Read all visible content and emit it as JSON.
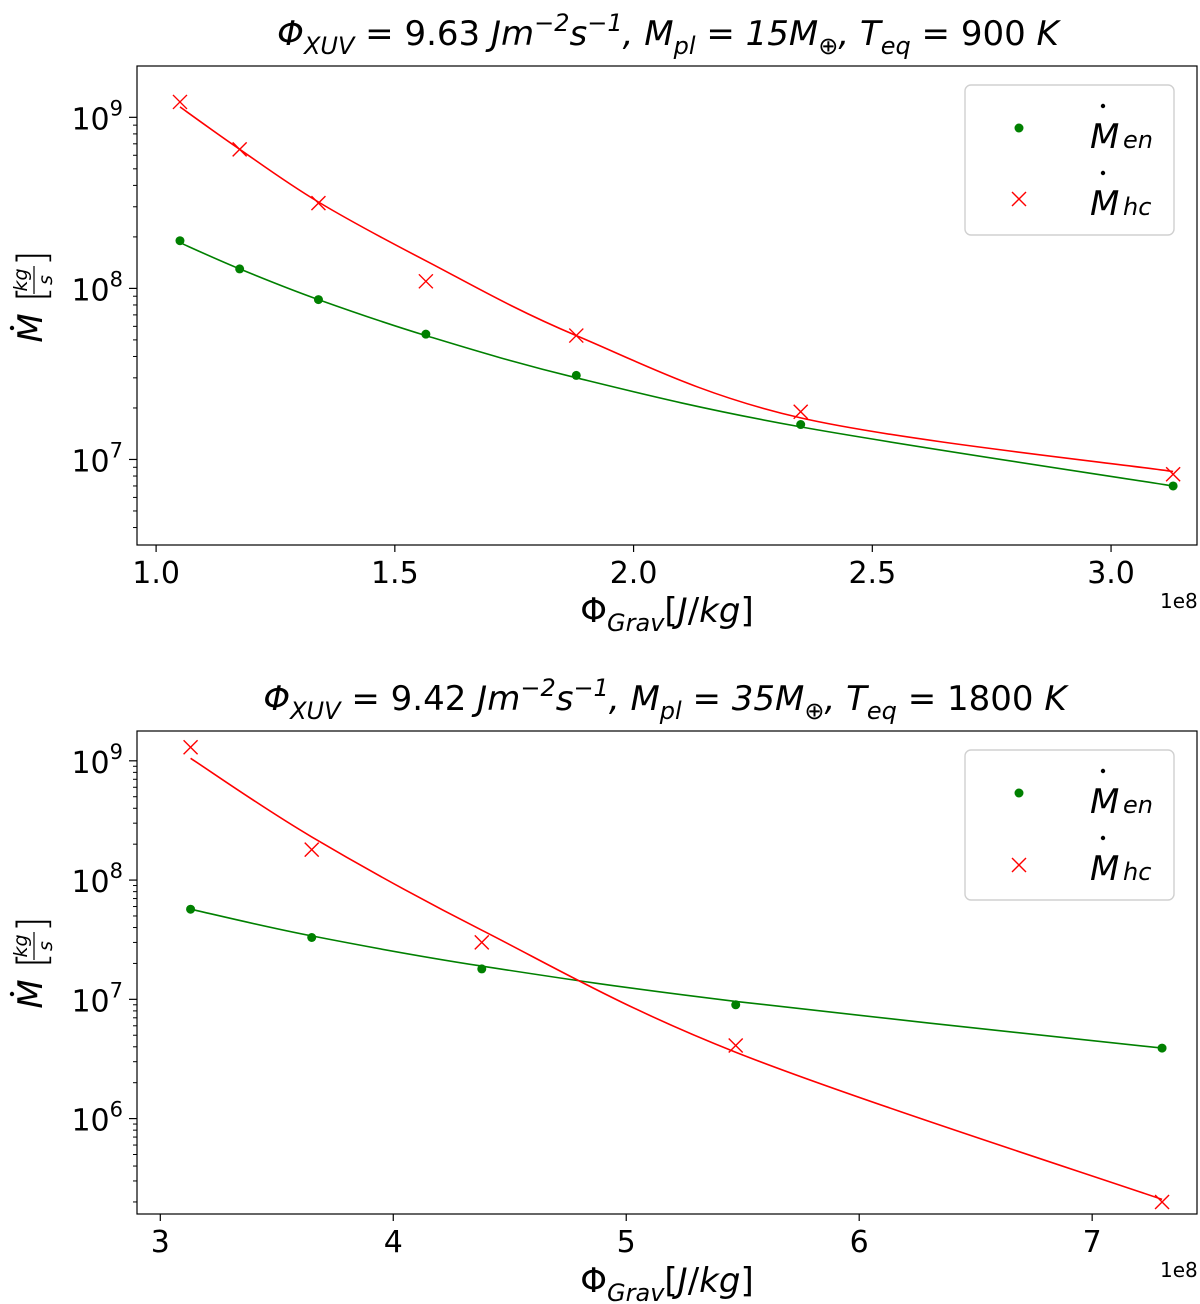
{
  "chart_data": [
    {
      "type": "scatter",
      "title": "Φ_XUV = 9.63 Jm⁻²s⁻¹,  M_pl = 15M⊕,  T_eq = 900 K",
      "title_parts": {
        "phi": "Φ",
        "phi_sub": "XUV",
        "phi_val": " = 9.63 ",
        "jm": "Jm",
        "jm_exp": "−2",
        "s": "s",
        "s_exp": "−1",
        "mpl": ",  M",
        "mpl_sub": "pl",
        "mpl_val": " = 15M",
        "earth": "⊕",
        "teq": ",  T",
        "teq_sub": "eq",
        "teq_val": " = 900 ",
        "unit": "K"
      },
      "xlabel": "Φ_Grav[J/kg]",
      "ylabel": "Ṁ[kg/s]",
      "x_offset_label": "1e8",
      "x_scale": 100000000,
      "xlim": [
        0.96,
        3.18
      ],
      "ylim_log10": [
        6.5,
        9.3
      ],
      "yscale": "log",
      "x_ticks": [
        1.0,
        1.5,
        2.0,
        2.5,
        3.0
      ],
      "x_tick_labels": [
        "1.0",
        "1.5",
        "2.0",
        "2.5",
        "3.0"
      ],
      "y_ticks_log10": [
        7,
        8,
        9
      ],
      "legend_position": "top-right",
      "series": [
        {
          "name": "Ṁ_en",
          "color": "#008000",
          "marker": "dot",
          "x": [
            1.05,
            1.175,
            1.34,
            1.565,
            1.88,
            2.35,
            3.13
          ],
          "y": [
            190000000,
            130000000,
            86000000,
            54000000,
            31000000,
            16000000,
            7000000
          ],
          "fit_x": [
            1.05,
            1.175,
            1.34,
            1.565,
            1.88,
            2.35,
            3.13
          ],
          "fit_y": [
            185000000,
            130000000,
            86000000,
            53000000,
            30000000,
            15500000,
            7000000
          ]
        },
        {
          "name": "Ṁ_hc",
          "color": "#ff0000",
          "marker": "x",
          "x": [
            1.05,
            1.175,
            1.34,
            1.565,
            1.88,
            2.35,
            3.13
          ],
          "y": [
            1230000000,
            650000000,
            315000000,
            110000000,
            53000000,
            19000000,
            8200000
          ],
          "fit_x": [
            1.05,
            1.175,
            1.34,
            1.565,
            1.88,
            2.35,
            3.13
          ],
          "fit_y": [
            1150000000,
            650000000,
            320000000,
            145000000,
            53000000,
            17500000,
            8500000
          ]
        }
      ]
    },
    {
      "type": "scatter",
      "title": "Φ_XUV = 9.42 Jm⁻²s⁻¹,  M_pl = 35M⊕,  T_eq = 1800 K",
      "title_parts": {
        "phi": "Φ",
        "phi_sub": "XUV",
        "phi_val": " = 9.42 ",
        "jm": "Jm",
        "jm_exp": "−2",
        "s": "s",
        "s_exp": "−1",
        "mpl": ",  M",
        "mpl_sub": "pl",
        "mpl_val": " = 35M",
        "earth": "⊕",
        "teq": ",  T",
        "teq_sub": "eq",
        "teq_val": " = 1800 ",
        "unit": "K"
      },
      "xlabel": "Φ_Grav[J/kg]",
      "ylabel": "Ṁ[kg/s]",
      "x_offset_label": "1e8",
      "x_scale": 100000000,
      "xlim": [
        2.9,
        7.45
      ],
      "ylim_log10": [
        5.2,
        9.25
      ],
      "yscale": "log",
      "x_ticks": [
        3,
        4,
        5,
        6,
        7
      ],
      "x_tick_labels": [
        "3",
        "4",
        "5",
        "6",
        "7"
      ],
      "y_ticks_log10": [
        6,
        7,
        8,
        9
      ],
      "legend_position": "top-right",
      "series": [
        {
          "name": "Ṁ_en",
          "color": "#008000",
          "marker": "dot",
          "x": [
            3.13,
            3.65,
            4.38,
            5.47,
            7.3
          ],
          "y": [
            57000000,
            33000000,
            18000000,
            9000000,
            3900000
          ],
          "fit_x": [
            3.13,
            3.65,
            4.38,
            5.47,
            7.3
          ],
          "fit_y": [
            57000000,
            34000000,
            19000000,
            9600000,
            3900000
          ]
        },
        {
          "name": "Ṁ_hc",
          "color": "#ff0000",
          "marker": "x",
          "x": [
            3.13,
            3.65,
            4.38,
            5.47,
            7.3
          ],
          "y": [
            1300000000,
            180000000,
            30000000,
            4100000,
            200000
          ],
          "fit_x": [
            3.13,
            3.65,
            4.38,
            5.47,
            7.3
          ],
          "fit_y": [
            1050000000,
            230000000,
            38000000,
            3600000,
            210000
          ]
        }
      ]
    }
  ]
}
